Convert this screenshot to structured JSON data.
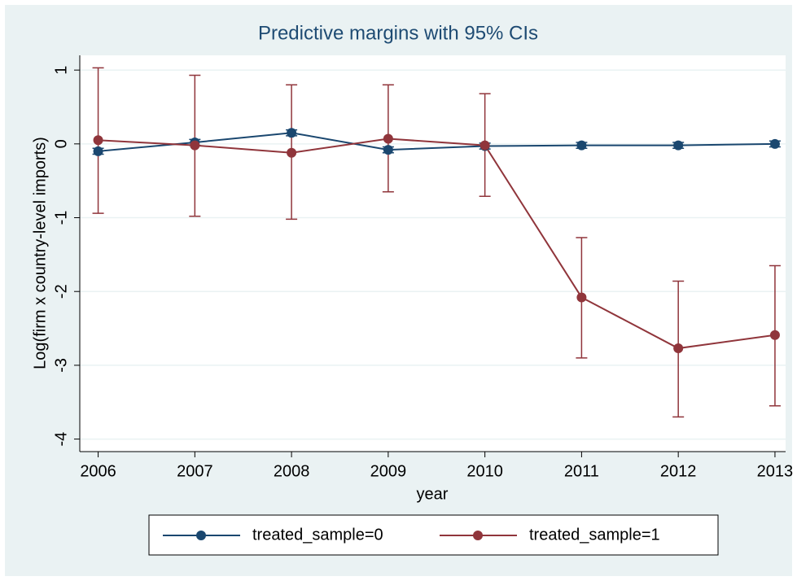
{
  "chart_data": {
    "type": "line",
    "title": "Predictive margins with 95% CIs",
    "x_label": "year",
    "y_label": "Log(firm x country-level imports)",
    "x": [
      2006,
      2007,
      2008,
      2009,
      2010,
      2011,
      2012,
      2013
    ],
    "series": [
      {
        "name": "treated_sample=0",
        "color": "#1a476f",
        "values": [
          -0.1,
          0.02,
          0.15,
          -0.08,
          -0.03,
          -0.02,
          -0.02,
          0.0
        ],
        "lower": [
          -0.14,
          -0.02,
          0.11,
          -0.12,
          -0.07,
          -0.06,
          -0.06,
          -0.04
        ],
        "upper": [
          -0.06,
          0.06,
          0.19,
          -0.04,
          0.01,
          0.02,
          0.02,
          0.04
        ]
      },
      {
        "name": "treated_sample=1",
        "color": "#90353b",
        "values": [
          0.05,
          -0.02,
          -0.12,
          0.07,
          -0.02,
          -2.08,
          -2.77,
          -2.59
        ],
        "lower": [
          -0.94,
          -0.98,
          -1.02,
          -0.65,
          -0.71,
          -2.9,
          -3.7,
          -3.55
        ],
        "upper": [
          1.03,
          0.93,
          0.8,
          0.8,
          0.68,
          -1.27,
          -1.86,
          -1.65
        ]
      }
    ],
    "xlim": [
      2005.81,
      2013.11
    ],
    "xticks": [
      2006,
      2007,
      2008,
      2009,
      2010,
      2011,
      2012,
      2013
    ],
    "ylim": [
      -4.17,
      1.2
    ],
    "yticks": [
      -4,
      -3,
      -2,
      -1,
      0,
      1
    ],
    "grid": true,
    "legend": "bottom"
  }
}
